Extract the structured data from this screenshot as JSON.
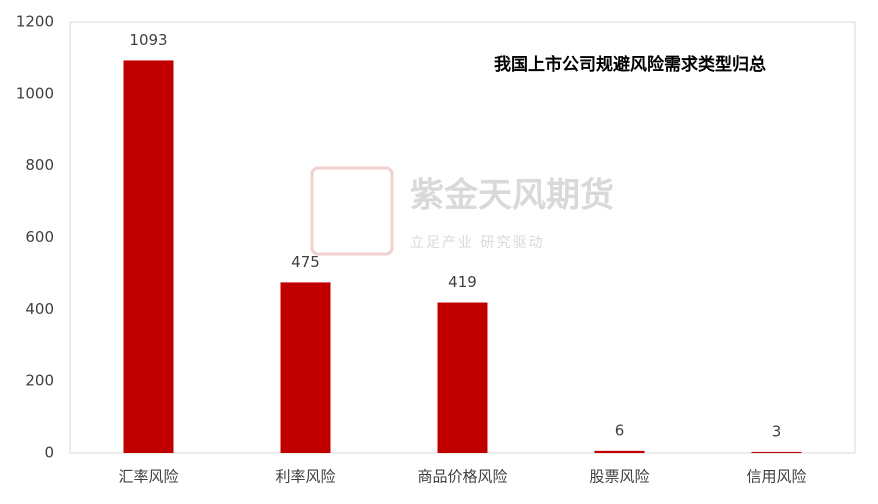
{
  "chart_data": {
    "type": "bar",
    "title": "我国上市公司规避风险需求类型归总",
    "categories": [
      "汇率风险",
      "利率风险",
      "商品价格风险",
      "股票风险",
      "信用风险"
    ],
    "values": [
      1093,
      475,
      419,
      6,
      3
    ],
    "color": "#c00000",
    "ylim": [
      0,
      1200
    ],
    "yticks": [
      0,
      200,
      400,
      600,
      800,
      1000,
      1200
    ],
    "grid": false,
    "watermark": {
      "name": "紫金天风期货",
      "slogan": "立足产业 研究驱动"
    }
  }
}
